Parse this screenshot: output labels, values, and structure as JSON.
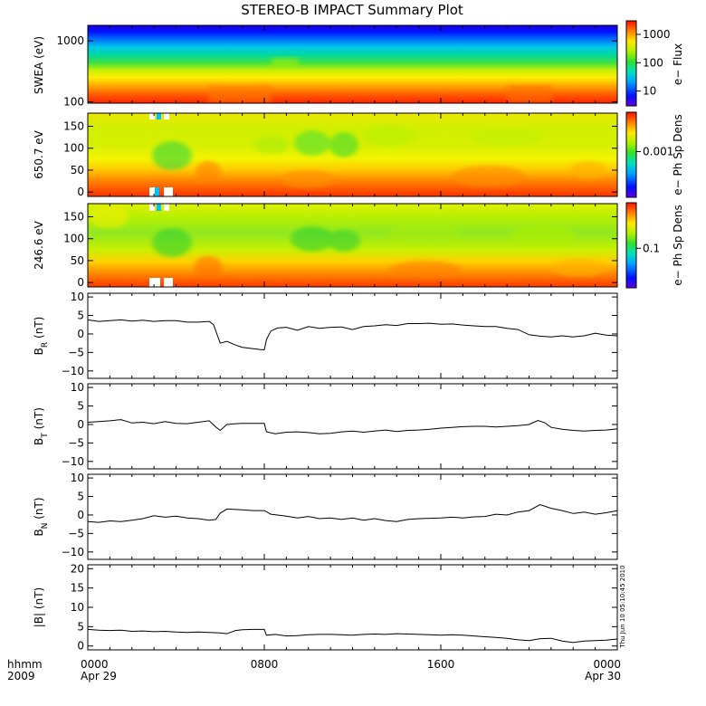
{
  "title": "STEREO-B IMPACT Summary Plot",
  "stamp": "Thu Jun 10 05:10:45 2010",
  "time_axis": {
    "corner_label": "hhmm",
    "corner_year": "2009",
    "range_hours": [
      0,
      24
    ],
    "ticks": [
      {
        "hour": 0,
        "label": "0000",
        "sub": "Apr 29"
      },
      {
        "hour": 8,
        "label": "0800",
        "sub": ""
      },
      {
        "hour": 16,
        "label": "1600",
        "sub": ""
      },
      {
        "hour": 24,
        "label": "0000",
        "sub": "Apr 30"
      }
    ]
  },
  "chart_data": [
    {
      "type": "heatmap",
      "id": "swea",
      "ylabel": "SWEA (eV)",
      "yscale": "log",
      "ylim": [
        95,
        1800
      ],
      "yticks": [
        {
          "v": 100,
          "label": "100"
        },
        {
          "v": 1000,
          "label": "1000"
        }
      ],
      "colorbar_label": "e− Flux",
      "colorbar_scale": "log",
      "colorbar_range": [
        3,
        3000
      ],
      "colorbar_ticks": [
        {
          "v": 10,
          "label": "10"
        },
        {
          "v": 100,
          "label": "100"
        },
        {
          "v": 1000,
          "label": "1000"
        }
      ]
    },
    {
      "type": "heatmap",
      "id": "pad650",
      "ylabel": "650.7 eV",
      "ylim": [
        -10,
        180
      ],
      "yticks": [
        {
          "v": 0,
          "label": "0"
        },
        {
          "v": 50,
          "label": "50"
        },
        {
          "v": 100,
          "label": "100"
        },
        {
          "v": 150,
          "label": "150"
        }
      ],
      "colorbar_label": "e− Ph Sp Dens",
      "colorbar_scale": "log",
      "colorbar_range": [
        0.0002,
        0.004
      ],
      "colorbar_ticks": [
        {
          "v": 0.001,
          "label": "0.001"
        }
      ]
    },
    {
      "type": "heatmap",
      "id": "pad246",
      "ylabel": "246.6 eV",
      "ylim": [
        -10,
        180
      ],
      "yticks": [
        {
          "v": 0,
          "label": "0"
        },
        {
          "v": 50,
          "label": "50"
        },
        {
          "v": 100,
          "label": "100"
        },
        {
          "v": 150,
          "label": "150"
        }
      ],
      "colorbar_label": "e− Ph Sp Dens",
      "colorbar_scale": "log",
      "colorbar_range": [
        0.03,
        0.4
      ],
      "colorbar_ticks": [
        {
          "v": 0.1,
          "label": "0.1"
        }
      ]
    },
    {
      "type": "line",
      "id": "br",
      "ylabel_main": "B",
      "ylabel_sub": "R",
      "ylabel_unit": "(nT)",
      "ylim": [
        -12,
        11
      ],
      "yticks": [
        {
          "v": -10,
          "label": "−10"
        },
        {
          "v": -5,
          "label": "−5"
        },
        {
          "v": 0,
          "label": "0"
        },
        {
          "v": 5,
          "label": "5"
        },
        {
          "v": 10,
          "label": "10"
        }
      ],
      "x": [
        0,
        0.5,
        1,
        1.5,
        2,
        2.5,
        3,
        3.5,
        4,
        4.5,
        5,
        5.5,
        5.7,
        6,
        6.3,
        6.7,
        7,
        7.5,
        7.8,
        8,
        8.1,
        8.3,
        8.6,
        9,
        9.5,
        10,
        10.5,
        11,
        11.5,
        12,
        12.5,
        13,
        13.5,
        14,
        14.5,
        15,
        15.5,
        16,
        16.5,
        17,
        17.5,
        18,
        18.5,
        19,
        19.5,
        20,
        20.5,
        21,
        21.5,
        22,
        22.5,
        23,
        23.5,
        24
      ],
      "y": [
        3.8,
        3.4,
        3.6,
        3.8,
        3.5,
        3.7,
        3.4,
        3.6,
        3.6,
        3.2,
        3.2,
        3.4,
        2.5,
        -2.5,
        -2.0,
        -3.0,
        -3.6,
        -4.0,
        -4.2,
        -4.3,
        -1.5,
        0.8,
        1.6,
        1.8,
        1.0,
        2.0,
        1.5,
        1.8,
        1.9,
        1.2,
        2.0,
        2.2,
        2.5,
        2.3,
        2.8,
        2.8,
        2.9,
        2.6,
        2.7,
        2.4,
        2.2,
        2.0,
        2.0,
        1.5,
        1.2,
        -0.2,
        -0.6,
        -0.8,
        -0.5,
        -0.8,
        -0.5,
        0.2,
        -0.3,
        -0.5
      ]
    },
    {
      "type": "line",
      "id": "bt",
      "ylabel_main": "B",
      "ylabel_sub": "T",
      "ylabel_unit": "(nT)",
      "ylim": [
        -12,
        11
      ],
      "yticks": [
        {
          "v": -10,
          "label": "−10"
        },
        {
          "v": -5,
          "label": "−5"
        },
        {
          "v": 0,
          "label": "0"
        },
        {
          "v": 5,
          "label": "5"
        },
        {
          "v": 10,
          "label": "10"
        }
      ],
      "x": [
        0,
        0.5,
        1,
        1.5,
        2,
        2.5,
        3,
        3.5,
        4,
        4.5,
        5,
        5.5,
        5.8,
        6,
        6.3,
        6.7,
        7,
        7.5,
        8,
        8.1,
        8.5,
        9,
        9.5,
        10,
        10.5,
        11,
        11.5,
        12,
        12.5,
        13,
        13.5,
        14,
        14.5,
        15,
        15.5,
        16,
        16.5,
        17,
        17.5,
        18,
        18.5,
        19,
        19.5,
        20,
        20.4,
        20.7,
        21,
        21.5,
        22,
        22.5,
        23,
        23.5,
        24
      ],
      "y": [
        0.6,
        0.8,
        1.0,
        1.3,
        0.4,
        0.6,
        0.2,
        0.8,
        0.3,
        0.2,
        0.6,
        1.0,
        -0.7,
        -1.6,
        0.0,
        0.2,
        0.3,
        0.3,
        0.3,
        -2.0,
        -2.5,
        -2.1,
        -2.0,
        -2.2,
        -2.5,
        -2.4,
        -2.0,
        -1.8,
        -2.1,
        -1.8,
        -1.5,
        -1.9,
        -1.6,
        -1.5,
        -1.3,
        -1.0,
        -0.8,
        -0.6,
        -0.5,
        -0.5,
        -0.7,
        -0.5,
        -0.3,
        0.0,
        1.1,
        0.5,
        -0.8,
        -1.3,
        -1.6,
        -1.8,
        -1.6,
        -1.5,
        -1.2
      ]
    },
    {
      "type": "line",
      "id": "bn",
      "ylabel_main": "B",
      "ylabel_sub": "N",
      "ylabel_unit": "(nT)",
      "ylim": [
        -12,
        11
      ],
      "yticks": [
        {
          "v": -10,
          "label": "−10"
        },
        {
          "v": -5,
          "label": "−5"
        },
        {
          "v": 0,
          "label": "0"
        },
        {
          "v": 5,
          "label": "5"
        },
        {
          "v": 10,
          "label": "10"
        }
      ],
      "x": [
        0,
        0.5,
        1,
        1.5,
        2,
        2.5,
        3,
        3.5,
        4,
        4.5,
        5,
        5.5,
        5.8,
        6,
        6.3,
        7,
        7.5,
        8,
        8.3,
        9,
        9.5,
        10,
        10.5,
        11,
        11.5,
        12,
        12.5,
        13,
        13.5,
        14,
        14.5,
        15,
        15.5,
        16,
        16.5,
        17,
        17.5,
        18,
        18.5,
        19,
        19.5,
        20,
        20.5,
        21,
        21.5,
        22,
        22.5,
        23,
        23.5,
        24
      ],
      "y": [
        -1.8,
        -2.0,
        -1.6,
        -1.8,
        -1.4,
        -1.0,
        -0.2,
        -0.6,
        -0.3,
        -0.8,
        -1.0,
        -1.4,
        -1.2,
        0.5,
        1.6,
        1.4,
        1.2,
        1.2,
        0.2,
        -0.3,
        -0.8,
        -0.4,
        -1.0,
        -0.8,
        -1.2,
        -0.8,
        -1.4,
        -1.0,
        -1.5,
        -1.8,
        -1.2,
        -1.0,
        -0.9,
        -0.8,
        -0.6,
        -0.8,
        -0.5,
        -0.4,
        0.2,
        0.0,
        0.8,
        1.2,
        2.8,
        1.8,
        1.2,
        0.4,
        0.8,
        0.2,
        0.6,
        1.2
      ]
    },
    {
      "type": "line",
      "id": "bmag",
      "ylabel_main": "|B|",
      "ylabel_sub": "",
      "ylabel_unit": "(nT)",
      "ylim": [
        -1,
        21
      ],
      "yticks": [
        {
          "v": 0,
          "label": "0"
        },
        {
          "v": 5,
          "label": "5"
        },
        {
          "v": 10,
          "label": "10"
        },
        {
          "v": 15,
          "label": "15"
        },
        {
          "v": 20,
          "label": "20"
        }
      ],
      "x": [
        0,
        0.5,
        1,
        1.5,
        2,
        2.5,
        3,
        3.5,
        4,
        4.5,
        5,
        5.5,
        6,
        6.3,
        6.7,
        7,
        7.5,
        8,
        8.1,
        8.5,
        9,
        9.5,
        10,
        10.5,
        11,
        11.5,
        12,
        12.5,
        13,
        13.5,
        14,
        14.5,
        15,
        15.5,
        16,
        16.5,
        17,
        17.5,
        18,
        18.5,
        19,
        19.5,
        20,
        20.5,
        21,
        21.5,
        22,
        22.5,
        23,
        23.5,
        24
      ],
      "y": [
        4.3,
        4.1,
        4.0,
        4.1,
        3.8,
        3.9,
        3.7,
        3.8,
        3.6,
        3.5,
        3.6,
        3.5,
        3.4,
        3.2,
        4.0,
        4.2,
        4.3,
        4.3,
        2.8,
        3.0,
        2.6,
        2.7,
        2.9,
        3.0,
        3.0,
        2.9,
        2.8,
        3.0,
        3.1,
        3.0,
        3.2,
        3.1,
        3.0,
        2.9,
        2.8,
        2.9,
        2.8,
        2.6,
        2.4,
        2.2,
        2.0,
        1.6,
        1.4,
        1.9,
        2.0,
        1.3,
        0.9,
        1.3,
        1.4,
        1.5,
        1.8
      ]
    }
  ]
}
